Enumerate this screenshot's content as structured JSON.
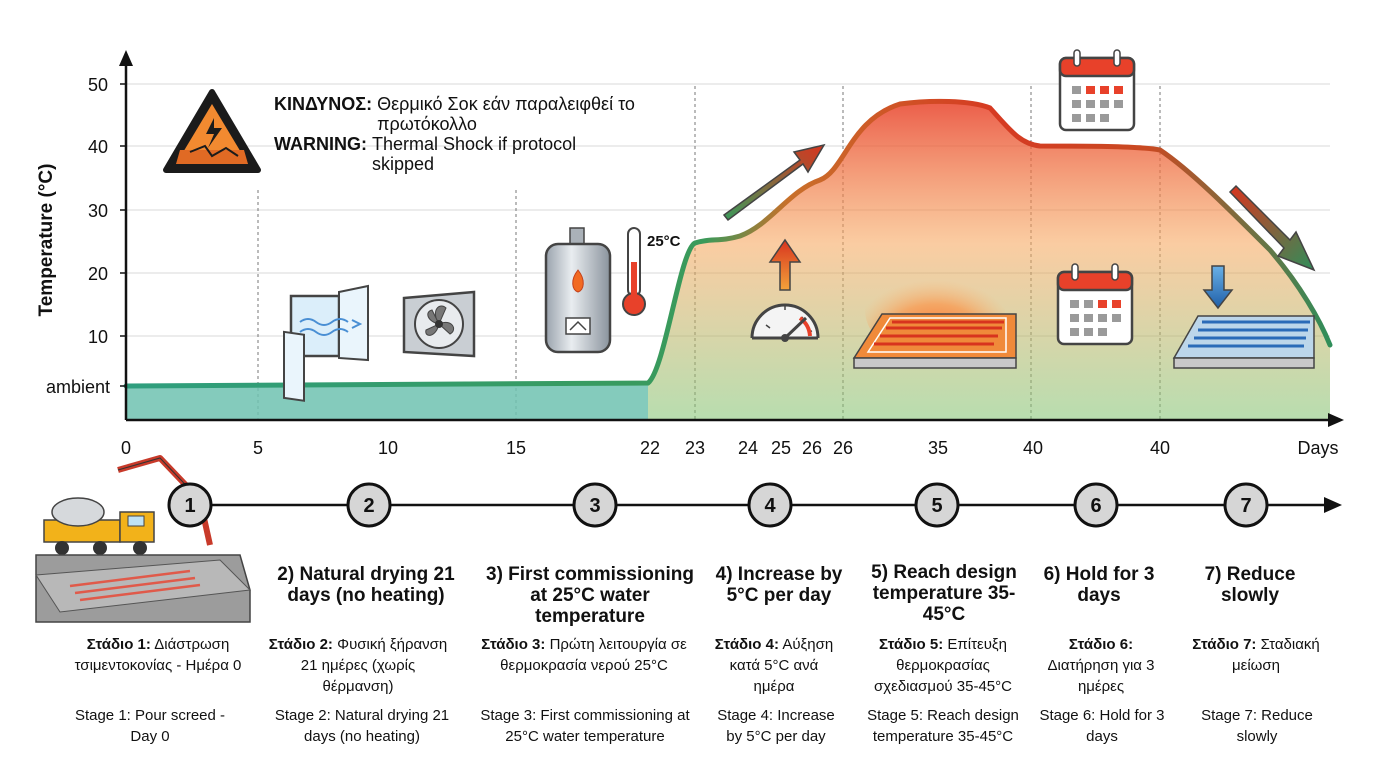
{
  "chart_data": {
    "type": "area",
    "title": "",
    "ylabel": "Temperature (°C)",
    "xlabel": "Days",
    "y_ticks": [
      "ambient",
      "10",
      "20",
      "30",
      "40",
      "50"
    ],
    "x_ticks": [
      "0",
      "5",
      "10",
      "15",
      "22",
      "23",
      "24",
      "25",
      "26",
      "26",
      "35",
      "40",
      "40"
    ],
    "ylim": [
      5,
      50
    ],
    "series": [
      {
        "points_day_temp": [
          [
            0,
            5
          ],
          [
            22,
            5
          ],
          [
            23,
            24.5
          ],
          [
            24,
            25
          ],
          [
            25,
            29
          ],
          [
            26,
            33
          ],
          [
            26,
            35
          ],
          [
            27,
            42
          ],
          [
            28,
            46.5
          ],
          [
            30,
            46.5
          ],
          [
            31,
            44
          ],
          [
            33,
            40
          ],
          [
            34,
            40
          ],
          [
            34,
            38
          ],
          [
            35,
            36
          ],
          [
            36,
            30
          ],
          [
            37,
            20
          ],
          [
            37.5,
            8
          ]
        ]
      }
    ],
    "annotations": {
      "heater_temp": "25°C"
    },
    "grid": true
  },
  "warning": {
    "gr_bold": "ΚΙΝΔΥΝΟΣ:",
    "gr_text": "Θερμικό Σοκ εάν παραλειφθεί το πρωτόκολλο",
    "en_bold": "WARNING:",
    "en_text": "Thermal Shock if protocol skipped"
  },
  "stages": [
    {
      "num": "1",
      "title": "",
      "gr_bold": "Στάδιο 1:",
      "gr_text": "Διάστρωση τσιμεντοκονίας - Ημέρα 0",
      "en": "Stage 1: Pour screed - Day 0"
    },
    {
      "num": "2",
      "title": "2) Natural drying 21 days (no heating)",
      "gr_bold": "Στάδιο 2:",
      "gr_text": "Φυσική ξήρανση 21 ημέρες (χωρίς θέρμανση)",
      "en": "Stage 2: Natural drying 21 days (no heating)"
    },
    {
      "num": "3",
      "title": "3) First commissioning at 25°C water temperature",
      "gr_bold": "Στάδιο 3:",
      "gr_text": "Πρώτη λειτουργία σε θερμοκρασία νερού 25°C",
      "en": "Stage 3: First commissioning at 25°C water temperature"
    },
    {
      "num": "4",
      "title": "4) Increase by 5°C per day",
      "gr_bold": "Στάδιο 4:",
      "gr_text": "Αύξηση κατά 5°C ανά ημέρα",
      "en": "Stage 4: Increase by 5°C per day"
    },
    {
      "num": "5",
      "title": "5) Reach design temperature 35-45°C",
      "gr_bold": "Στάδιο 5:",
      "gr_text": "Επίτευξη θερμοκρασίας σχεδιασμού 35-45°C",
      "en": "Stage 5: Reach design temperature 35-45°C"
    },
    {
      "num": "6",
      "title": "6) Hold for 3 days",
      "gr_bold": "Στάδιο 6:",
      "gr_text": "Διατήρηση για 3 ημέρες",
      "en": "Stage 6: Hold for 3 days"
    },
    {
      "num": "7",
      "title": "7) Reduce slowly",
      "gr_bold": "Στάδιο 7:",
      "gr_text": "Σταδιακή μείωση",
      "en": "Stage 7: Reduce slowly"
    }
  ],
  "icons": [
    "warning-thermal-shock-icon",
    "window-icon",
    "fan-icon",
    "water-heater-icon",
    "thermometer-icon",
    "gauge-icon",
    "up-arrow-icon",
    "heated-floor-hot-icon",
    "calendar-icon",
    "heated-floor-cool-icon",
    "down-arrow-icon",
    "concrete-pump-truck-icon",
    "screed-floor-icon"
  ],
  "colors": {
    "ambient_fill": "#6fc2b0",
    "ambient_line": "#2f9e7e",
    "hot": "#e8412a",
    "warm": "#f29a3a",
    "cool": "#3a9a6a"
  }
}
